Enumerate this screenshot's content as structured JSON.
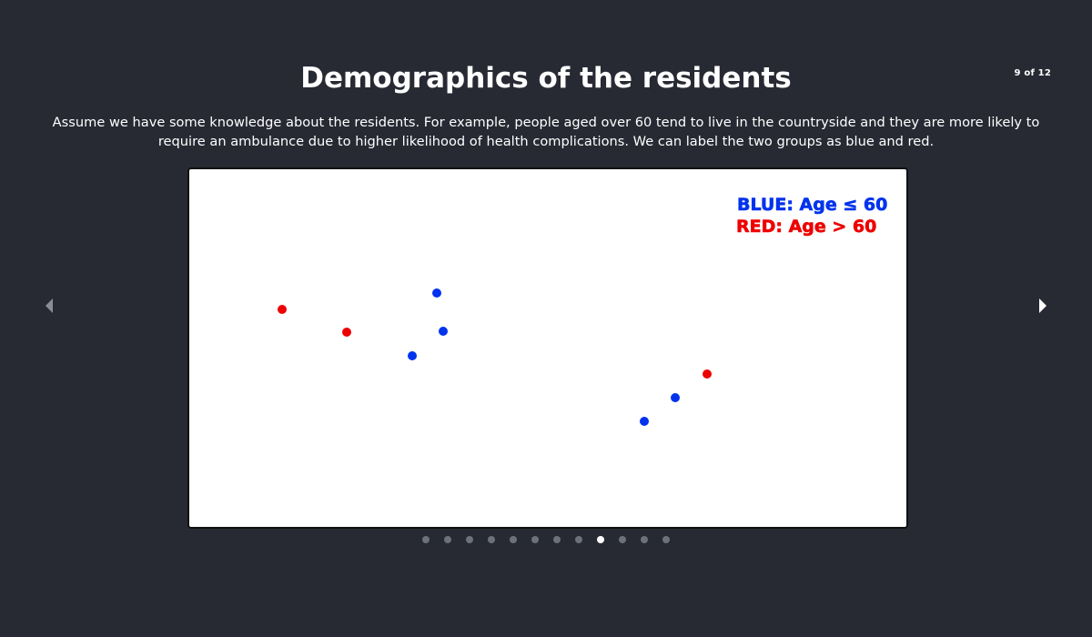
{
  "slide": {
    "title": "Demographics of the residents",
    "counter": "9 of 12",
    "caption": "Assume we have some knowledge about the residents. For example, people aged over 60 tend to live in the countryside and they are more likely to require an ambulance due to higher likelihood of health complications. We can label the two groups as blue and red.",
    "current_index": 9,
    "total": 12
  },
  "icons": {
    "prev": "chevron-left-icon",
    "next": "chevron-right-icon"
  },
  "colors": {
    "background": "#272a33",
    "blue": "#0033ee",
    "red": "#ee0000",
    "dot_inactive": "#6d717c",
    "dot_active": "#ffffff"
  },
  "figure": {
    "legend": {
      "blue_label": "BLUE: Age ≤ 60",
      "red_label": "RED: Age > 60"
    },
    "points": [
      {
        "group": "red",
        "color": "#ee0000"
      },
      {
        "group": "red",
        "color": "#ee0000"
      },
      {
        "group": "blue",
        "color": "#0033ee"
      },
      {
        "group": "blue",
        "color": "#0033ee"
      },
      {
        "group": "blue",
        "color": "#0033ee"
      },
      {
        "group": "red",
        "color": "#ee0000"
      },
      {
        "group": "blue",
        "color": "#0033ee"
      },
      {
        "group": "blue",
        "color": "#0033ee"
      }
    ]
  }
}
